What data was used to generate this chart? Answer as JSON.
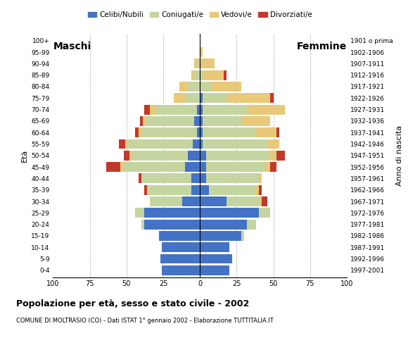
{
  "age_groups": [
    "0-4",
    "5-9",
    "10-14",
    "15-19",
    "20-24",
    "25-29",
    "30-34",
    "35-39",
    "40-44",
    "45-49",
    "50-54",
    "55-59",
    "60-64",
    "65-69",
    "70-74",
    "75-79",
    "80-84",
    "85-89",
    "90-94",
    "95-99",
    "100+"
  ],
  "birth_years": [
    "1997-2001",
    "1992-1996",
    "1987-1991",
    "1982-1986",
    "1977-1981",
    "1972-1976",
    "1967-1971",
    "1962-1966",
    "1957-1961",
    "1952-1956",
    "1947-1951",
    "1942-1946",
    "1937-1941",
    "1932-1936",
    "1927-1931",
    "1922-1926",
    "1917-1921",
    "1912-1916",
    "1907-1911",
    "1902-1906",
    "1901 o prima"
  ],
  "male": {
    "celibi": [
      26,
      27,
      26,
      28,
      38,
      38,
      12,
      6,
      6,
      10,
      8,
      5,
      2,
      4,
      2,
      0,
      0,
      0,
      0,
      0,
      0
    ],
    "coniugati": [
      0,
      0,
      0,
      0,
      2,
      6,
      22,
      30,
      34,
      42,
      38,
      44,
      38,
      33,
      28,
      10,
      8,
      4,
      2,
      0,
      0
    ],
    "vedovi": [
      0,
      0,
      0,
      0,
      0,
      0,
      0,
      0,
      0,
      2,
      2,
      2,
      2,
      2,
      4,
      8,
      6,
      2,
      2,
      0,
      0
    ],
    "divorziati": [
      0,
      0,
      0,
      0,
      0,
      0,
      0,
      2,
      2,
      10,
      4,
      4,
      2,
      2,
      4,
      0,
      0,
      0,
      0,
      0,
      0
    ]
  },
  "female": {
    "nubili": [
      20,
      22,
      20,
      28,
      32,
      40,
      18,
      6,
      4,
      4,
      4,
      2,
      2,
      2,
      2,
      2,
      0,
      0,
      0,
      0,
      0
    ],
    "coniugate": [
      0,
      0,
      0,
      2,
      6,
      8,
      22,
      32,
      36,
      40,
      44,
      44,
      36,
      26,
      30,
      16,
      8,
      2,
      0,
      0,
      0
    ],
    "vedove": [
      0,
      0,
      0,
      0,
      0,
      0,
      2,
      2,
      2,
      4,
      4,
      8,
      14,
      20,
      26,
      30,
      20,
      14,
      10,
      2,
      0
    ],
    "divorziate": [
      0,
      0,
      0,
      0,
      0,
      0,
      4,
      2,
      0,
      4,
      6,
      0,
      2,
      0,
      0,
      2,
      0,
      2,
      0,
      0,
      0
    ]
  },
  "colors": {
    "celibi": "#4472C4",
    "coniugati": "#c5d5a0",
    "vedovi": "#e8c97a",
    "divorziati": "#c0392b"
  },
  "title": "Popolazione per età, sesso e stato civile - 2002",
  "subtitle": "COMUNE DI MOLTRASIO (CO) - Dati ISTAT 1° gennaio 2002 - Elaborazione TUTTITALIA.IT",
  "legend_labels": [
    "Celibi/Nubili",
    "Coniugati/e",
    "Vedovi/e",
    "Divorziati/e"
  ],
  "xlim": 100,
  "xlabel_left": "Maschi",
  "xlabel_right": "Femmine",
  "ylabel_left": "Età",
  "ylabel_right": "Anno di nascita"
}
